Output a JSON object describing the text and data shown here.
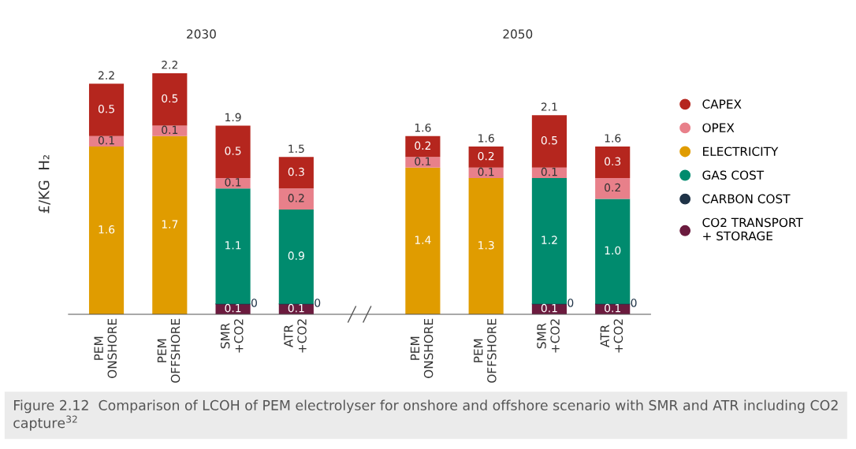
{
  "chart_data": {
    "type": "bar",
    "stacked": true,
    "ylabel": "£/KG  H₂",
    "categories": [
      "PEM\nONSHORE",
      "PEM\nOFFSHORE",
      "SMR\n+CO2",
      "ATR\n+CO2",
      null,
      "PEM\nONSHORE",
      "PEM\nOFFSHORE",
      "SMR\n+CO2",
      "ATR\n+CO2"
    ],
    "series": [
      {
        "name": "CO2 TRANSPORT\n+ STORAGE",
        "color": "#6b1b3e",
        "values": [
          null,
          null,
          0.1,
          0.1,
          null,
          null,
          null,
          0.1,
          0.1
        ],
        "value_labels": [
          null,
          null,
          "0.1",
          "0.1",
          null,
          null,
          null,
          "0.1",
          "0.1"
        ]
      },
      {
        "name": "CARBON COST",
        "color": "#1f3347",
        "values": [
          null,
          null,
          0,
          0,
          null,
          null,
          null,
          0,
          0
        ],
        "value_labels": [
          null,
          null,
          "0",
          "0",
          null,
          null,
          null,
          "0",
          "0"
        ]
      },
      {
        "name": "GAS COST",
        "color": "#008b6e",
        "values": [
          null,
          null,
          1.1,
          0.9,
          null,
          null,
          null,
          1.2,
          1.0
        ],
        "value_labels": [
          null,
          null,
          "1.1",
          "0.9",
          null,
          null,
          null,
          "1.2",
          "1.0"
        ]
      },
      {
        "name": "ELECTRICITY",
        "color": "#e09c00",
        "values": [
          1.6,
          1.7,
          null,
          null,
          null,
          1.4,
          1.3,
          null,
          null
        ],
        "value_labels": [
          "1.6",
          "1.7",
          null,
          null,
          null,
          "1.4",
          "1.3",
          null,
          null
        ]
      },
      {
        "name": "OPEX",
        "color": "#e8808a",
        "values": [
          0.1,
          0.1,
          0.1,
          0.2,
          null,
          0.1,
          0.1,
          0.1,
          0.2
        ],
        "value_labels": [
          "0.1",
          "0.1",
          "0.1",
          "0.2",
          null,
          "0.1",
          "0.1",
          "0.1",
          "0.2"
        ]
      },
      {
        "name": "CAPEX",
        "color": "#b5261e",
        "values": [
          0.5,
          0.5,
          0.5,
          0.3,
          null,
          0.2,
          0.2,
          0.5,
          0.3
        ],
        "value_labels": [
          "0.5",
          "0.5",
          "0.5",
          "0.3",
          null,
          "0.2",
          "0.2",
          "0.5",
          "0.3"
        ]
      }
    ],
    "totals": [
      "2.2",
      "2.2",
      "1.9",
      "1.5",
      null,
      "1.6",
      "1.6",
      "2.1",
      "1.6"
    ],
    "legend": "right",
    "grid": false,
    "tick_labels": "x",
    "annotations": [
      "2030",
      "2050",
      "Figure 2.12  Comparison of LCOH of PEM electrolyser for onshore and offshore scenario with SMR and ATR including CO2 capture$^{32}$"
    ]
  }
}
